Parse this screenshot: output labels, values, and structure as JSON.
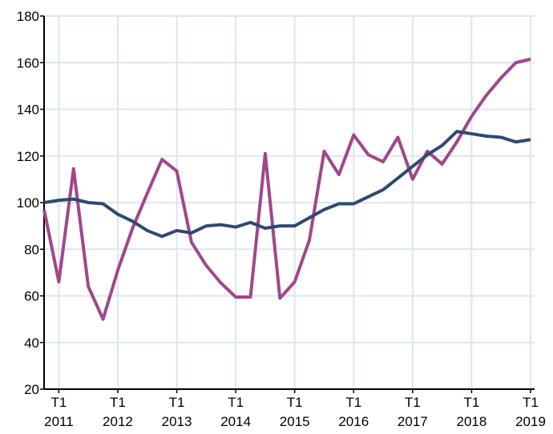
{
  "chart_data": {
    "type": "line",
    "categories": [
      null,
      "T1 2011",
      null,
      null,
      null,
      "T1 2012",
      null,
      null,
      null,
      "T1 2013",
      null,
      null,
      null,
      "T1 2014",
      null,
      null,
      null,
      "T1 2015",
      null,
      null,
      null,
      "T1 2016",
      null,
      null,
      null,
      "T1 2017",
      null,
      null,
      null,
      "T1 2018",
      null,
      null,
      null,
      "T1 2019"
    ],
    "series": [
      {
        "color": "#a0478a",
        "values": [
          97,
          66,
          114.5,
          64,
          50,
          71,
          89,
          104,
          118.5,
          113.5,
          83,
          73,
          65.5,
          59.5,
          59.5,
          121,
          59,
          66,
          84,
          122,
          112,
          129,
          120.5,
          117.5,
          128,
          110,
          122,
          116.5,
          126,
          137,
          146,
          153.5,
          160,
          161.5
        ]
      },
      {
        "color": "#2e4a70",
        "values": [
          100,
          101,
          101.5,
          100,
          99.5,
          95,
          92,
          88,
          85.5,
          88,
          87,
          90,
          90.5,
          89.5,
          91.5,
          89,
          90,
          90,
          93.5,
          97,
          99.5,
          99.5,
          102.5,
          105.5,
          110.5,
          115.5,
          120.5,
          124.5,
          130.5,
          129.5,
          128.5,
          128,
          126,
          127
        ]
      }
    ],
    "ylim": [
      20,
      180
    ],
    "yticks": [
      20,
      40,
      60,
      80,
      100,
      120,
      140,
      160,
      180
    ],
    "grid": true
  }
}
